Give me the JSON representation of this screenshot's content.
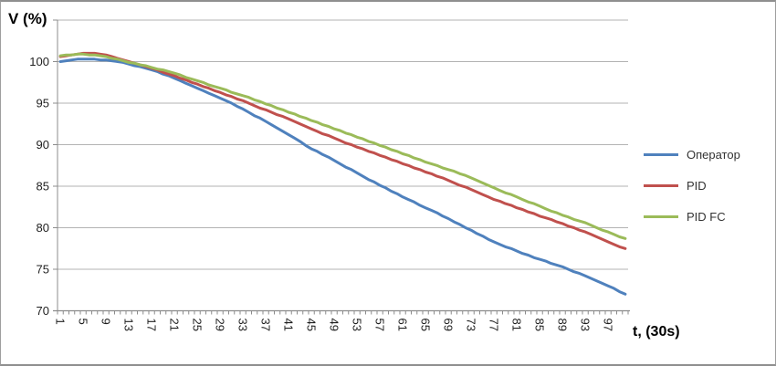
{
  "window": {
    "background": "#ffffff",
    "border_color": "#9e9e9e"
  },
  "chart_data": {
    "type": "line",
    "title": "",
    "y_axis_title": "V (%)",
    "x_axis_title": "t, (30s)",
    "ylim": [
      70,
      105
    ],
    "y_ticks": [
      100,
      95,
      90,
      85,
      80,
      75,
      70
    ],
    "grid": "horizontal",
    "gridline_color": "#b3b3b3",
    "axis_line_color": "#8c8c8c",
    "tick_label_color": "#1f1f1f",
    "x_tick_labels": [
      "1",
      "5",
      "9",
      "13",
      "17",
      "21",
      "25",
      "29",
      "33",
      "37",
      "41",
      "45",
      "49",
      "53",
      "57",
      "61",
      "65",
      "69",
      "73",
      "77",
      "81",
      "85",
      "89",
      "93",
      "97"
    ],
    "x_tick_label_step": 4,
    "x_count": 100,
    "legend_position": "right",
    "series": [
      {
        "name": "Оператор",
        "color": "#4F81BD",
        "values": [
          100.0,
          100.1,
          100.2,
          100.3,
          100.3,
          100.3,
          100.3,
          100.2,
          100.2,
          100.1,
          100.0,
          99.9,
          99.7,
          99.5,
          99.4,
          99.2,
          99.0,
          98.8,
          98.5,
          98.3,
          98.0,
          97.7,
          97.4,
          97.1,
          96.8,
          96.5,
          96.2,
          95.9,
          95.6,
          95.3,
          95.0,
          94.6,
          94.3,
          93.9,
          93.5,
          93.2,
          92.8,
          92.4,
          92.0,
          91.6,
          91.2,
          90.8,
          90.4,
          89.9,
          89.5,
          89.2,
          88.8,
          88.5,
          88.1,
          87.7,
          87.3,
          87.0,
          86.6,
          86.2,
          85.8,
          85.5,
          85.1,
          84.8,
          84.4,
          84.1,
          83.7,
          83.4,
          83.1,
          82.7,
          82.4,
          82.1,
          81.8,
          81.4,
          81.1,
          80.7,
          80.4,
          80.0,
          79.7,
          79.3,
          79.0,
          78.6,
          78.3,
          78.0,
          77.7,
          77.5,
          77.2,
          76.9,
          76.7,
          76.4,
          76.2,
          76.0,
          75.7,
          75.5,
          75.3,
          75.0,
          74.7,
          74.5,
          74.2,
          73.9,
          73.6,
          73.3,
          73.0,
          72.7,
          72.3,
          72.0
        ]
      },
      {
        "name": "PID",
        "color": "#C0504D",
        "values": [
          100.6,
          100.7,
          100.8,
          100.9,
          101.0,
          101.0,
          101.0,
          100.9,
          100.8,
          100.6,
          100.4,
          100.2,
          100.0,
          99.8,
          99.6,
          99.4,
          99.2,
          99.0,
          98.7,
          98.5,
          98.3,
          98.0,
          97.8,
          97.5,
          97.3,
          97.0,
          96.8,
          96.5,
          96.3,
          96.0,
          95.8,
          95.5,
          95.3,
          95.0,
          94.7,
          94.4,
          94.2,
          93.9,
          93.6,
          93.4,
          93.1,
          92.8,
          92.5,
          92.2,
          91.9,
          91.6,
          91.3,
          91.1,
          90.8,
          90.5,
          90.2,
          90.0,
          89.7,
          89.5,
          89.2,
          89.0,
          88.7,
          88.5,
          88.2,
          88.0,
          87.7,
          87.5,
          87.2,
          87.0,
          86.7,
          86.5,
          86.2,
          86.0,
          85.7,
          85.4,
          85.1,
          84.9,
          84.6,
          84.3,
          84.0,
          83.7,
          83.4,
          83.2,
          82.9,
          82.7,
          82.4,
          82.2,
          81.9,
          81.7,
          81.4,
          81.2,
          81.0,
          80.7,
          80.5,
          80.2,
          80.0,
          79.7,
          79.5,
          79.2,
          78.9,
          78.6,
          78.3,
          78.0,
          77.7,
          77.5
        ]
      },
      {
        "name": "PID FC",
        "color": "#9BBB59",
        "values": [
          100.7,
          100.8,
          100.8,
          100.9,
          100.9,
          100.8,
          100.8,
          100.7,
          100.6,
          100.4,
          100.3,
          100.1,
          99.9,
          99.8,
          99.6,
          99.5,
          99.3,
          99.1,
          99.0,
          98.8,
          98.6,
          98.4,
          98.1,
          97.9,
          97.7,
          97.5,
          97.2,
          97.0,
          96.8,
          96.6,
          96.3,
          96.1,
          95.9,
          95.7,
          95.4,
          95.2,
          94.9,
          94.7,
          94.4,
          94.2,
          93.9,
          93.7,
          93.4,
          93.2,
          92.9,
          92.7,
          92.4,
          92.2,
          91.9,
          91.7,
          91.4,
          91.2,
          90.9,
          90.7,
          90.4,
          90.2,
          89.9,
          89.7,
          89.4,
          89.2,
          88.9,
          88.7,
          88.4,
          88.2,
          87.9,
          87.7,
          87.5,
          87.2,
          87.0,
          86.8,
          86.5,
          86.3,
          86.0,
          85.7,
          85.4,
          85.1,
          84.8,
          84.5,
          84.2,
          84.0,
          83.7,
          83.4,
          83.1,
          82.9,
          82.6,
          82.3,
          82.0,
          81.8,
          81.5,
          81.3,
          81.0,
          80.8,
          80.6,
          80.3,
          80.0,
          79.7,
          79.5,
          79.2,
          78.9,
          78.7
        ]
      }
    ]
  }
}
